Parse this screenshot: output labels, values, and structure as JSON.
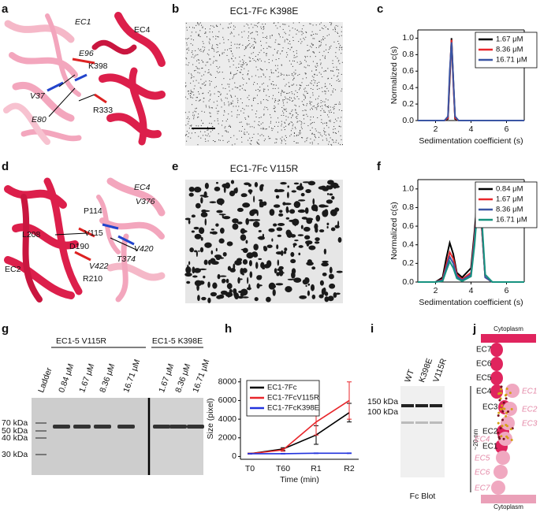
{
  "panel_letters": [
    "a",
    "b",
    "c",
    "d",
    "e",
    "f",
    "g",
    "h",
    "i",
    "j"
  ],
  "panel_a": {
    "labels": [
      "EC1",
      "EC4",
      "E96",
      "K398",
      "V37",
      "R333",
      "E80"
    ]
  },
  "panel_b": {
    "title": "EC1-7Fc K398E"
  },
  "panel_d": {
    "labels": [
      "EC4",
      "V376",
      "P114",
      "L208",
      "V115",
      "V420",
      "D190",
      "T374",
      "V422",
      "R210",
      "EC2"
    ]
  },
  "panel_e": {
    "title": "EC1-7Fc V115R"
  },
  "panel_g": {
    "groups": [
      "EC1-5 V115R",
      "EC1-5 K398E"
    ],
    "lanes": [
      "Ladder",
      "0.84 μM",
      "1.67 μM",
      "8.36 μM",
      "16.71 μM",
      "1.67 μM",
      "8.36 μM",
      "16.71 μM"
    ],
    "markers": [
      "70 kDa",
      "50 kDa",
      "40 kDa",
      "30 kDa"
    ]
  },
  "panel_i": {
    "lanes": [
      "WT",
      "K398E",
      "V115R"
    ],
    "markers": [
      "150 kDa",
      "100 kDa"
    ],
    "caption": "Fc Blot"
  },
  "panel_j": {
    "top": "Cytoplasm",
    "bottom": "Cytoplasm",
    "domains_a": [
      "EC7",
      "EC6",
      "EC5",
      "EC4",
      "EC3",
      "EC2",
      "EC1"
    ],
    "domains_b": [
      "EC1",
      "EC2",
      "EC3",
      "EC4",
      "EC5",
      "EC6",
      "EC7"
    ],
    "scale": "~20 nm"
  },
  "chart_data": [
    {
      "type": "line",
      "xlabel": "Sedimentation coefficient (s)",
      "ylabel": "Normalized c(s)",
      "x": [
        1,
        2,
        2.5,
        2.7,
        2.8,
        2.9,
        3.0,
        3.1,
        3.3,
        4,
        5,
        6,
        7
      ],
      "series": [
        {
          "name": "1.67 μM",
          "color": "#000000",
          "values": [
            0,
            0,
            0,
            0.02,
            0.5,
            1.0,
            0.5,
            0.02,
            0,
            0,
            0,
            0,
            0
          ]
        },
        {
          "name": "8.36 μM",
          "color": "#e8262b",
          "values": [
            0,
            0,
            0,
            0.03,
            0.55,
            0.98,
            0.45,
            0.03,
            0,
            0,
            0,
            0,
            0
          ]
        },
        {
          "name": "16.71 μM",
          "color": "#3a55a4",
          "values": [
            0,
            0,
            0,
            0.05,
            0.6,
            0.95,
            0.5,
            0.05,
            0,
            0,
            0,
            0,
            0
          ]
        }
      ],
      "xlim": [
        1,
        7
      ],
      "xticks": [
        2,
        4,
        6
      ],
      "ylim": [
        0,
        1.1
      ],
      "yticks": [
        {
          "value": 0,
          "label": "0.0"
        },
        {
          "value": 0.2,
          "label": "0.2"
        },
        {
          "value": 0.4,
          "label": "0.4"
        },
        {
          "value": 0.6,
          "label": "0.6"
        },
        {
          "value": 0.8,
          "label": "0.8"
        },
        {
          "value": 1,
          "label": "1.0"
        }
      ],
      "legend": "upper right"
    },
    {
      "type": "line",
      "xlabel": "Sedimentation coefficient (s)",
      "ylabel": "Normalized c(s)",
      "x": [
        1,
        2,
        2.4,
        2.6,
        2.8,
        3.0,
        3.2,
        3.5,
        4.0,
        4.2,
        4.4,
        4.6,
        4.8,
        5.2,
        6,
        7
      ],
      "series": [
        {
          "name": "0.84 μM",
          "color": "#000000",
          "values": [
            0,
            0,
            0.05,
            0.25,
            0.42,
            0.3,
            0.1,
            0.05,
            0.15,
            0.55,
            1.0,
            0.6,
            0.05,
            0,
            0,
            0
          ]
        },
        {
          "name": "1.67 μM",
          "color": "#e8262b",
          "values": [
            0,
            0,
            0.03,
            0.18,
            0.32,
            0.25,
            0.08,
            0.03,
            0.1,
            0.5,
            0.92,
            0.6,
            0.05,
            0,
            0,
            0
          ]
        },
        {
          "name": "8.36 μM",
          "color": "#3a55a4",
          "values": [
            0,
            0,
            0.02,
            0.15,
            0.27,
            0.2,
            0.06,
            0.02,
            0.08,
            0.45,
            0.95,
            0.65,
            0.05,
            0,
            0,
            0
          ]
        },
        {
          "name": "16.71 μM",
          "color": "#17927f",
          "values": [
            0,
            0,
            0.01,
            0.12,
            0.22,
            0.15,
            0.04,
            0.01,
            0.06,
            0.4,
            0.88,
            0.7,
            0.08,
            0,
            0,
            0
          ]
        }
      ],
      "xlim": [
        1,
        7
      ],
      "xticks": [
        2,
        4,
        6
      ],
      "ylim": [
        0,
        1.1
      ],
      "yticks": [
        {
          "value": 0,
          "label": "0.0"
        },
        {
          "value": 0.2,
          "label": "0.2"
        },
        {
          "value": 0.4,
          "label": "0.4"
        },
        {
          "value": 0.6,
          "label": "0.6"
        },
        {
          "value": 0.8,
          "label": "0.8"
        },
        {
          "value": 1,
          "label": "1.0"
        }
      ],
      "legend": "upper right"
    },
    {
      "type": "line",
      "xlabel": "Time (min)",
      "ylabel": "Size (pixel)",
      "categories": [
        "T0",
        "T60",
        "R1",
        "R2"
      ],
      "series": [
        {
          "name": "EC1-7Fc",
          "color": "#000000",
          "values": [
            300,
            800,
            2300,
            4700
          ],
          "errors": [
            50,
            150,
            1000,
            1000
          ]
        },
        {
          "name": "EC1-7FcV115R",
          "color": "#e8262b",
          "values": [
            300,
            700,
            3700,
            6000
          ],
          "errors": [
            50,
            150,
            1400,
            2000
          ]
        },
        {
          "name": "EC1-7FcK398E",
          "color": "#2233dd",
          "values": [
            300,
            300,
            350,
            350
          ],
          "errors": [
            30,
            30,
            40,
            40
          ]
        }
      ],
      "ylim": [
        -300,
        8400
      ],
      "yticks": [
        0,
        2000,
        4000,
        6000,
        8000
      ],
      "legend": "upper left"
    }
  ]
}
